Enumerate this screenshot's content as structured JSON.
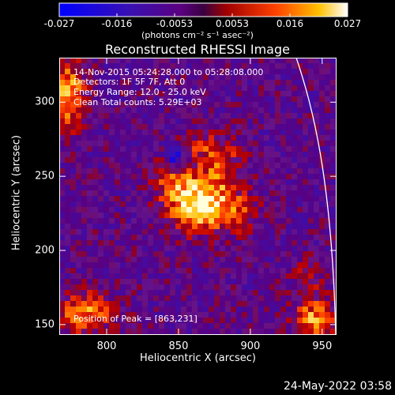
{
  "chart_data": {
    "type": "heatmap",
    "title": "Reconstructed RHESSI Image",
    "xlabel": "Heliocentric X (arcsec)",
    "ylabel": "Heliocentric Y (arcsec)",
    "xlim": [
      767,
      960
    ],
    "ylim": [
      143,
      330
    ],
    "x_ticks": [
      800,
      850,
      900,
      950
    ],
    "y_ticks": [
      150,
      200,
      250,
      300
    ],
    "colorbar": {
      "ticks": [
        "-0.027",
        "-0.016",
        "-0.0053",
        "0.0053",
        "0.016",
        "0.027"
      ],
      "range": [
        -0.027,
        0.027
      ],
      "units_label": "(photons cm⁻² s⁻¹ asec⁻²)"
    },
    "annotations": {
      "time": "14-Nov-2015 05:24:28.000 to 05:28:08.000",
      "detectors": "Detectors: 1F 5F 7F, Att 0",
      "energy": "Energy Range: 12.0 - 25.0 keV",
      "clean": "Clean     Total counts: 5.29E+03",
      "peak": "Position of Peak = [863,231]"
    },
    "sources": [
      {
        "x": 863,
        "y": 231,
        "peak": 0.027
      },
      {
        "x": 775,
        "y": 305,
        "peak": 0.02
      },
      {
        "x": 790,
        "y": 160,
        "peak": 0.014
      },
      {
        "x": 945,
        "y": 155,
        "peak": 0.016
      }
    ],
    "limb": "white curve",
    "grid": false
  },
  "timestamp": "24-May-2022 03:58"
}
